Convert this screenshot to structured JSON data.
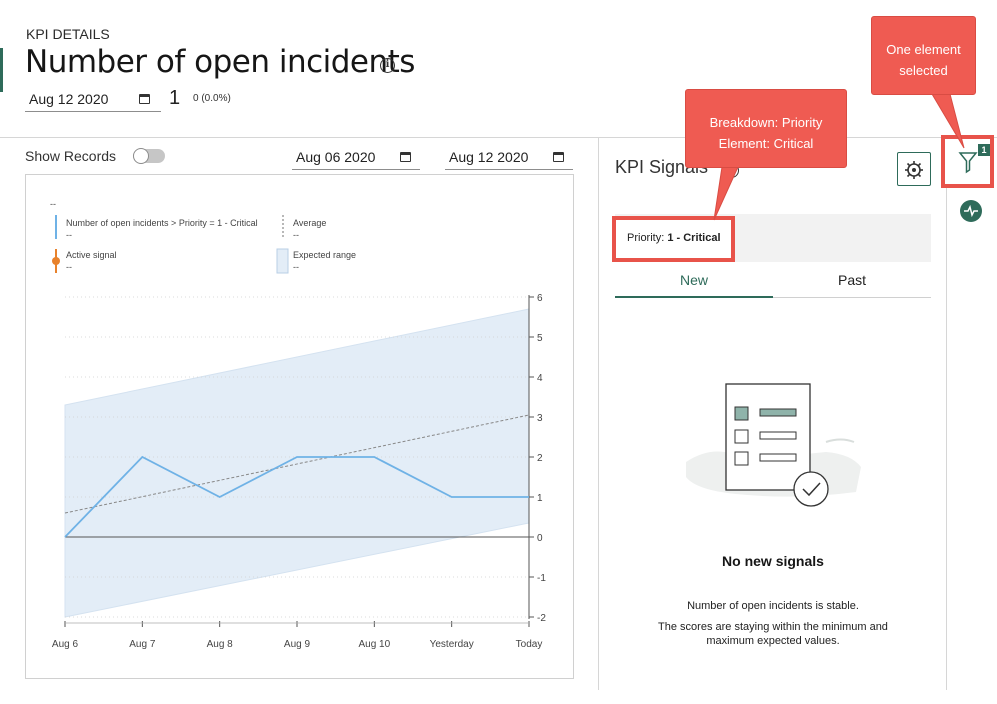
{
  "header": {
    "label": "KPI DETAILS",
    "title": "Number of open incidents",
    "date": "Aug 12 2020",
    "value": "1",
    "change": "0 (0.0%)"
  },
  "controls": {
    "show_records": "Show Records",
    "start_date": "Aug 06 2020",
    "end_date": "Aug 12 2020"
  },
  "legend": {
    "top_value": "--",
    "series_label": "Number of open incidents > Priority = 1 - Critical",
    "series_value": "--",
    "average_label": "Average",
    "average_value": "--",
    "active_label": "Active signal",
    "active_value": "--",
    "expected_label": "Expected range",
    "expected_value": "--"
  },
  "chart_data": {
    "type": "line",
    "x": [
      "Aug 6",
      "Aug 7",
      "Aug 8",
      "Aug 9",
      "Aug 10",
      "Yesterday",
      "Today"
    ],
    "series": [
      {
        "name": "Number of open incidents > Priority = 1 - Critical",
        "values": [
          0,
          2,
          1,
          2,
          2,
          1,
          1
        ]
      }
    ],
    "average": {
      "name": "Average",
      "start": 0.6,
      "end": 3.05
    },
    "expected_range": {
      "name": "Expected range",
      "lower": [
        -2,
        0.35
      ],
      "upper": [
        3.3,
        5.7
      ]
    },
    "yticks": [
      6,
      5,
      4,
      3,
      2,
      1,
      0,
      -1,
      -2
    ],
    "ylim": [
      -2,
      6
    ],
    "grid": true,
    "legend_position": "top"
  },
  "signals": {
    "title": "KPI Signals",
    "filter_prefix": "Priority: ",
    "filter_value": "1 - Critical",
    "tabs": [
      "New",
      "Past"
    ],
    "empty_title": "No new signals",
    "empty_line1": "Number of open incidents is stable.",
    "empty_line2": "The scores are staying within the minimum and maximum expected values."
  },
  "sidebar": {
    "filter_badge": "1"
  },
  "callouts": {
    "breakdown": "Breakdown: Priority",
    "element": "Element: Critical",
    "one_element": "One element",
    "selected": "selected"
  },
  "colors": {
    "accent": "#2e6b5a",
    "callout": "#ef5b52",
    "series_line": "#6fb2e6",
    "range_fill": "#e3edf7",
    "active_signal": "#e8822c"
  },
  "icons": [
    "info-icon",
    "calendar-icon",
    "settings-icon",
    "filter-icon",
    "pulse-icon",
    "checklist-illustration"
  ]
}
